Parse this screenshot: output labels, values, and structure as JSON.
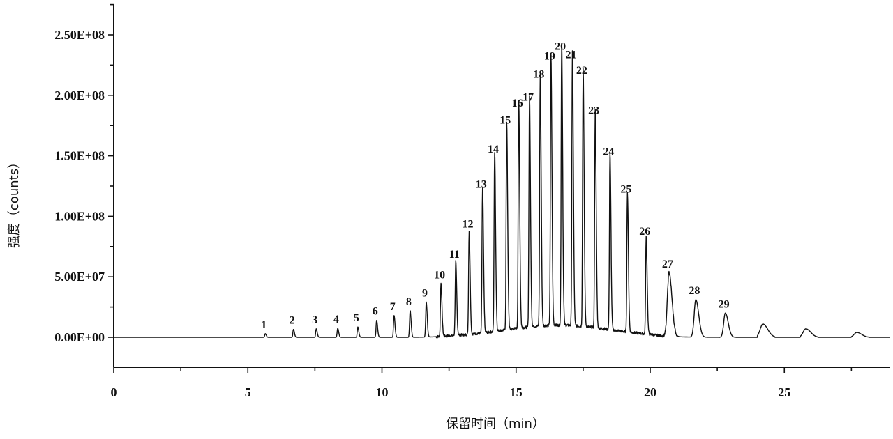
{
  "chart_data": {
    "type": "line",
    "title": "",
    "xlabel": "保留时间（min）",
    "ylabel": "强度（counts）",
    "xlim": [
      0,
      29
    ],
    "ylim": [
      -25000000.0,
      275000000.0
    ],
    "x_ticks": [
      {
        "value": 0,
        "label": "0"
      },
      {
        "value": 5,
        "label": "5"
      },
      {
        "value": 10,
        "label": "10"
      },
      {
        "value": 15,
        "label": "15"
      },
      {
        "value": 20,
        "label": "20"
      },
      {
        "value": 25,
        "label": "25"
      }
    ],
    "y_ticks": [
      {
        "value": 0,
        "label": "0.00E+00"
      },
      {
        "value": 50000000,
        "label": "5.00E+07"
      },
      {
        "value": 100000000,
        "label": "1.00E+08"
      },
      {
        "value": 150000000,
        "label": "1.50E+08"
      },
      {
        "value": 200000000,
        "label": "2.00E+08"
      },
      {
        "value": 250000000,
        "label": "2.50E+08"
      }
    ],
    "grid": false,
    "series": [
      {
        "peaks": [
          {
            "label": "1",
            "x": 5.65,
            "y": 3000000
          },
          {
            "label": "2",
            "x": 6.7,
            "y": 6500000
          },
          {
            "label": "3",
            "x": 7.55,
            "y": 7000000
          },
          {
            "label": "4",
            "x": 8.35,
            "y": 7500000
          },
          {
            "label": "5",
            "x": 9.1,
            "y": 8500000
          },
          {
            "label": "6",
            "x": 9.8,
            "y": 14000000
          },
          {
            "label": "7",
            "x": 10.45,
            "y": 18000000
          },
          {
            "label": "8",
            "x": 11.05,
            "y": 22000000
          },
          {
            "label": "9",
            "x": 11.65,
            "y": 29000000
          },
          {
            "label": "10",
            "x": 12.2,
            "y": 44000000
          },
          {
            "label": "11",
            "x": 12.75,
            "y": 61000000
          },
          {
            "label": "12",
            "x": 13.25,
            "y": 86000000
          },
          {
            "label": "13",
            "x": 13.75,
            "y": 119000000
          },
          {
            "label": "14",
            "x": 14.2,
            "y": 148000000
          },
          {
            "label": "15",
            "x": 14.65,
            "y": 172000000
          },
          {
            "label": "16",
            "x": 15.1,
            "y": 186000000
          },
          {
            "label": "17",
            "x": 15.5,
            "y": 191000000
          },
          {
            "label": "18",
            "x": 15.9,
            "y": 210000000
          },
          {
            "label": "19",
            "x": 16.3,
            "y": 225000000
          },
          {
            "label": "20",
            "x": 16.7,
            "y": 233000000
          },
          {
            "label": "21",
            "x": 17.1,
            "y": 226000000
          },
          {
            "label": "22",
            "x": 17.5,
            "y": 213000000
          },
          {
            "label": "23",
            "x": 17.95,
            "y": 180000000
          },
          {
            "label": "24",
            "x": 18.5,
            "y": 146000000
          },
          {
            "label": "25",
            "x": 19.15,
            "y": 115000000
          },
          {
            "label": "26",
            "x": 19.85,
            "y": 80000000
          },
          {
            "label": "27",
            "x": 20.7,
            "y": 53000000
          },
          {
            "label": "28",
            "x": 21.7,
            "y": 31000000
          },
          {
            "label": "29",
            "x": 22.8,
            "y": 20000000
          },
          {
            "label": "",
            "x": 24.2,
            "y": 11000000
          },
          {
            "label": "",
            "x": 25.8,
            "y": 7000000
          },
          {
            "label": "",
            "x": 27.7,
            "y": 4000000
          }
        ]
      }
    ]
  }
}
